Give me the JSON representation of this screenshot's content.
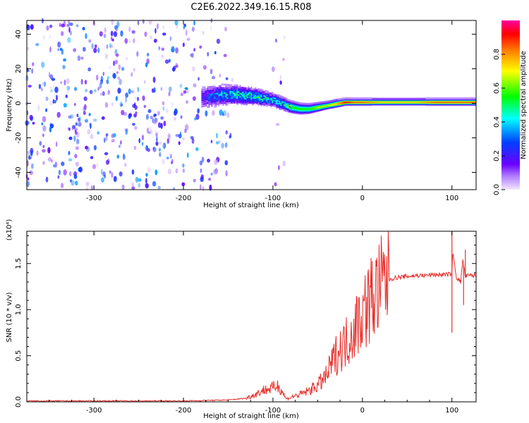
{
  "title": "C2E6.2022.349.16.15.R08",
  "chart_data": [
    {
      "type": "heatmap",
      "xlabel": "Height of straight line (km)",
      "ylabel": "Frequency (Hz)",
      "xlim": [
        -375,
        127
      ],
      "ylim": [
        -50,
        48
      ],
      "xticks": [
        -300,
        -200,
        -100,
        0,
        100
      ],
      "xtick_labels": [
        "-300",
        "-200",
        "-100",
        "0",
        "100"
      ],
      "yticks": [
        -40,
        -20,
        0,
        20,
        40
      ],
      "ytick_labels": [
        "-40",
        "-20",
        "0",
        "20",
        "40"
      ],
      "grid": false,
      "colorbar": {
        "label": "Normalized spectral amplitude",
        "range": [
          0,
          1
        ],
        "ticks": [
          0.0,
          0.2,
          0.4,
          0.6,
          0.8
        ],
        "tick_labels": [
          "0.0",
          "0.2",
          "0.4",
          "0.6",
          "0.8"
        ],
        "colormap": [
          "#f4e6ff",
          "#6a00ff",
          "#0040ff",
          "#00ffff",
          "#00ff00",
          "#ffff00",
          "#ff8000",
          "#ff0000",
          "#ff00a0"
        ]
      },
      "regions": [
        {
          "x": [
            -375,
            -143
          ],
          "freq": [
            -50,
            48
          ],
          "amplitude": 0.15,
          "pattern": "noise"
        },
        {
          "x": [
            -143,
            -100
          ],
          "freq": [
            -50,
            48
          ],
          "amplitude": 0.0,
          "pattern": "empty"
        },
        {
          "x": [
            -100,
            -86
          ],
          "freq": [
            -50,
            48
          ],
          "amplitude": 0.08,
          "pattern": "faint noise column"
        },
        {
          "x": [
            -180,
            127
          ],
          "freq": [
            -15,
            12
          ],
          "amplitude": 0.55,
          "pattern": "signal band"
        }
      ],
      "signal_band": {
        "x": [
          -180,
          -160,
          -140,
          -120,
          -100,
          -90,
          -80,
          -70,
          -60,
          -50,
          -40,
          -30,
          -20,
          -10,
          0,
          20,
          40,
          60,
          80,
          100,
          127
        ],
        "center_hz": [
          3,
          5,
          5,
          4,
          2,
          0,
          -2,
          -3,
          -3,
          -2,
          -1,
          0,
          1,
          1,
          1,
          1,
          1,
          1,
          1,
          1,
          1
        ],
        "width_hz": [
          22,
          18,
          16,
          14,
          12,
          11,
          10,
          9,
          8,
          7,
          6,
          6,
          5,
          5,
          5,
          5,
          5,
          5,
          5,
          5,
          5
        ],
        "peak_amplitude": [
          0.15,
          0.3,
          0.4,
          0.4,
          0.35,
          0.4,
          0.5,
          0.5,
          0.5,
          0.6,
          0.6,
          0.7,
          0.9,
          0.8,
          0.8,
          0.7,
          0.7,
          0.7,
          0.8,
          0.8,
          0.8
        ]
      }
    },
    {
      "type": "line",
      "xlabel": "Height of straight line (km)",
      "ylabel": "SNR (10 * v/v)",
      "y_multiplier": "(x10⁴)",
      "xlim": [
        -375,
        127
      ],
      "ylim": [
        0,
        1.85
      ],
      "xticks": [
        -300,
        -200,
        -100,
        0,
        100
      ],
      "xtick_labels": [
        "-300",
        "-200",
        "-100",
        "0",
        "100"
      ],
      "yticks": [
        0.0,
        0.5,
        1.0,
        1.5
      ],
      "ytick_labels": [
        "0.0",
        "0.5",
        "1.0",
        "1.5"
      ],
      "grid": false,
      "series": [
        {
          "color": "#e8302c",
          "x": [
            -375,
            -300,
            -200,
            -150,
            -130,
            -120,
            -110,
            -100,
            -95,
            -90,
            -85,
            -80,
            -70,
            -60,
            -50,
            -40,
            -35,
            -30,
            -25,
            -20,
            -15,
            -10,
            -5,
            0,
            5,
            10,
            15,
            20,
            25,
            30,
            40,
            50,
            60,
            70,
            80,
            90,
            95,
            100,
            101,
            105,
            110,
            112,
            115,
            120,
            127
          ],
          "y": [
            0.01,
            0.01,
            0.01,
            0.02,
            0.04,
            0.08,
            0.13,
            0.15,
            0.18,
            0.12,
            0.03,
            0.05,
            0.08,
            0.12,
            0.18,
            0.28,
            0.4,
            0.5,
            0.58,
            0.62,
            0.7,
            0.78,
            0.88,
            0.96,
            1.04,
            1.12,
            1.18,
            1.24,
            1.3,
            1.33,
            1.35,
            1.36,
            1.37,
            1.37,
            1.38,
            1.38,
            1.38,
            1.39,
            1.62,
            1.35,
            1.3,
            1.55,
            1.36,
            1.37,
            1.37
          ],
          "spikes": [
            {
              "x": 100,
              "y": 0.75
            },
            {
              "x": 100,
              "y": 1.85
            },
            {
              "x": 113,
              "y": 1.05
            },
            {
              "x": 115,
              "y": 1.65
            }
          ]
        }
      ]
    }
  ]
}
